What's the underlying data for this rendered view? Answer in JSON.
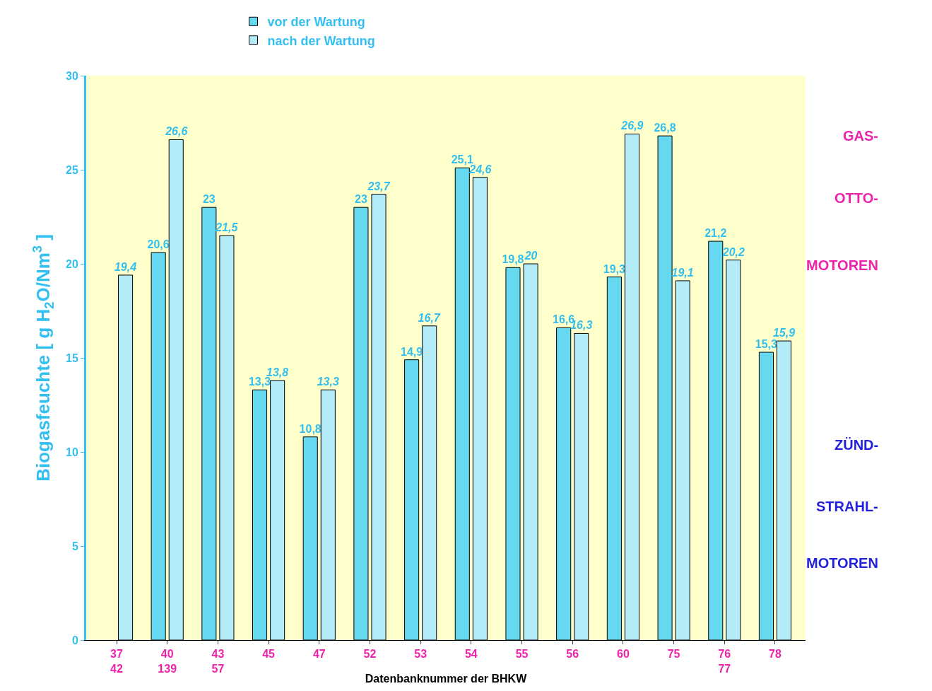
{
  "chart_data": {
    "type": "bar",
    "ylabel": "Biogasfeuchte [ g H$_{2}$O/Nm$^{3}$ ]",
    "xlabel": "Datenbanknummer der BHKW",
    "categories": [
      "37\n42",
      "40\n139",
      "43\n57",
      "45",
      "47",
      "52",
      "53",
      "54",
      "55",
      "56",
      "60",
      "75",
      "76\n77",
      "78"
    ],
    "series": [
      {
        "name": "vor der Wartung",
        "color": "#66d9f0",
        "values": [
          null,
          20.6,
          23,
          13.3,
          10.8,
          23,
          14.9,
          25.1,
          19.8,
          16.6,
          19.3,
          26.8,
          21.2,
          15.3
        ],
        "value_labels": [
          null,
          "20,6",
          "23",
          "13,3",
          "10,8",
          "23",
          "14,9",
          "25,1",
          "19,8",
          "16,6",
          "19,3",
          "26,8",
          "21,2",
          "15,3"
        ]
      },
      {
        "name": "nach der Wartung",
        "color": "#b3ecf8",
        "values": [
          19.4,
          26.6,
          21.5,
          13.8,
          13.3,
          23.7,
          16.7,
          24.6,
          20,
          16.3,
          26.9,
          19.1,
          20.2,
          15.9
        ],
        "value_labels": [
          "19,4",
          "26,6",
          "21,5",
          "13,8",
          "13,3",
          "23,7",
          "16,7",
          "24,6",
          "20",
          "16,3",
          "26,9",
          "19,1",
          "20,2",
          "15,9"
        ]
      }
    ],
    "ylim": [
      0,
      30
    ],
    "yticks": [
      0,
      5,
      10,
      15,
      20,
      25,
      30
    ],
    "grid": false,
    "legend": "top",
    "annotations": [
      "GAS-",
      "OTTO-",
      "MOTOREN",
      "ZÜND-",
      "STRAHL-",
      "MOTOREN"
    ]
  }
}
